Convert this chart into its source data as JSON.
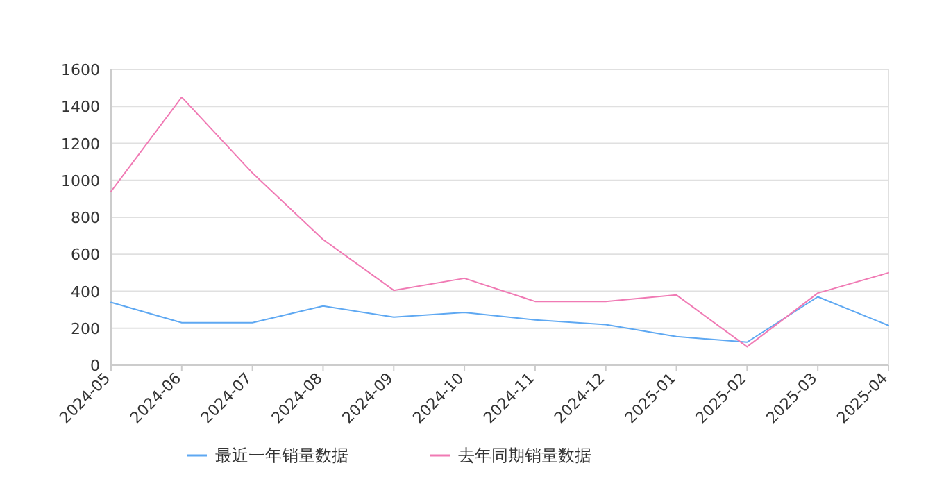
{
  "chart_data": {
    "type": "line",
    "categories": [
      "2024-05",
      "2024-06",
      "2024-07",
      "2024-08",
      "2024-09",
      "2024-10",
      "2024-11",
      "2024-12",
      "2025-01",
      "2025-02",
      "2025-03",
      "2025-04"
    ],
    "series": [
      {
        "name": "最近一年销量数据",
        "color": "#5ea8f2",
        "values": [
          340,
          230,
          230,
          320,
          260,
          285,
          245,
          220,
          155,
          125,
          370,
          215
        ]
      },
      {
        "name": "去年同期销量数据",
        "color": "#f07ab4",
        "values": [
          940,
          1450,
          1040,
          680,
          405,
          470,
          345,
          345,
          380,
          100,
          390,
          500
        ]
      }
    ],
    "ylim": [
      0,
      1600
    ],
    "yticks": [
      0,
      200,
      400,
      600,
      800,
      1000,
      1200,
      1400,
      1600
    ],
    "grid": "y",
    "legend": "bottom",
    "marker": "none",
    "line_style": "solid"
  }
}
